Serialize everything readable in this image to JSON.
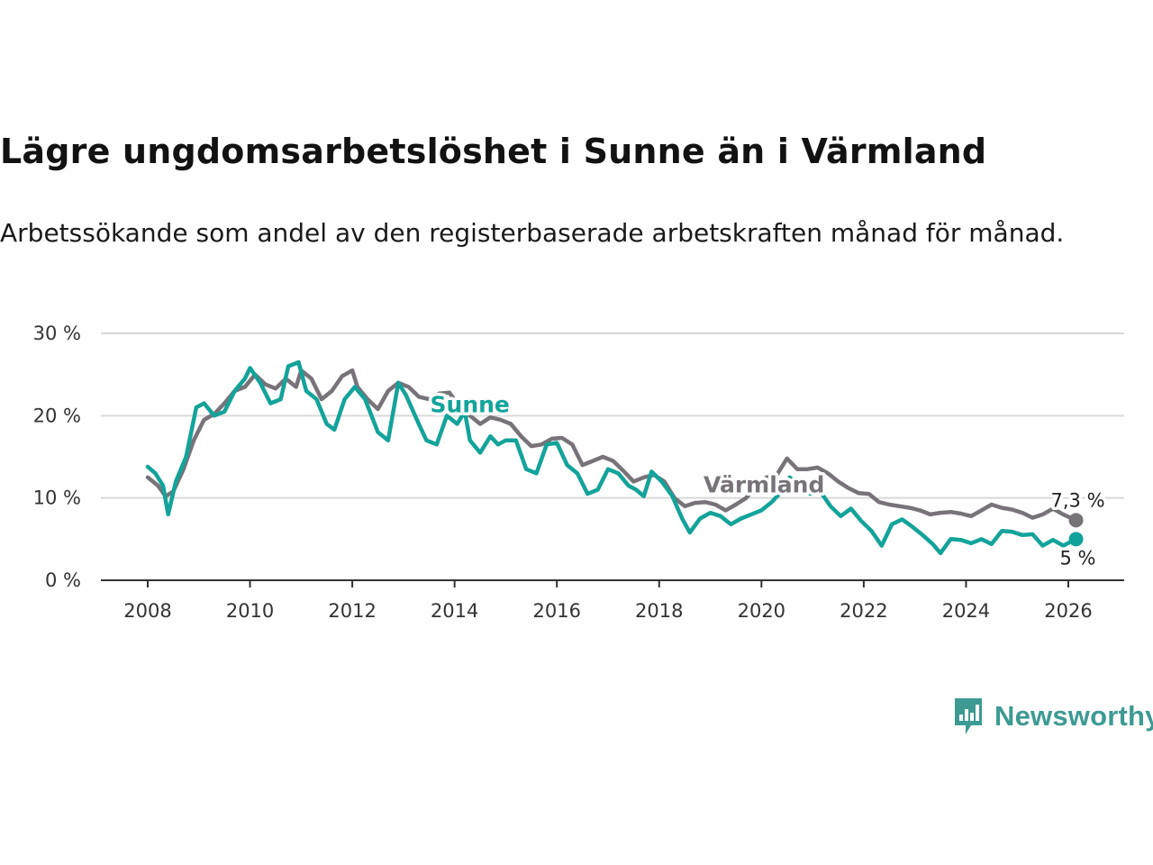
{
  "title": "Lägre ungdomsarbetslöshet i Sunne än i Värmland",
  "subtitle": "Arbetssökande som andel av den registerbaserade arbetskraften månad för månad.",
  "brand": {
    "name": "Newsworthy",
    "logo_icon": "newsworthy-logo-icon"
  },
  "colors": {
    "sunne": "#13a39a",
    "varmland": "#777379",
    "grid": "#d9d9d9",
    "axis": "#333333"
  },
  "chart_data": {
    "type": "line",
    "x_ticks": [
      "2008",
      "2010",
      "2012",
      "2014",
      "2016",
      "2018",
      "2020",
      "2022",
      "2024",
      "2026"
    ],
    "y_ticks": [
      "0 %",
      "10 %",
      "20 %",
      "30 %"
    ],
    "xlim": [
      2007.0,
      2027.0
    ],
    "ylim": [
      0,
      30
    ],
    "grid": true,
    "series": [
      {
        "name": "Värmland",
        "label": "Värmland",
        "end_label": "7,3 %",
        "points": [
          [
            2008.0,
            12.5
          ],
          [
            2008.2,
            11.5
          ],
          [
            2008.35,
            10.2
          ],
          [
            2008.5,
            10.8
          ],
          [
            2008.7,
            13.5
          ],
          [
            2008.9,
            17
          ],
          [
            2009.1,
            19.5
          ],
          [
            2009.3,
            20.2
          ],
          [
            2009.5,
            21.5
          ],
          [
            2009.7,
            23
          ],
          [
            2009.9,
            23.5
          ],
          [
            2010.1,
            25
          ],
          [
            2010.3,
            23.8
          ],
          [
            2010.5,
            23.3
          ],
          [
            2010.7,
            24.5
          ],
          [
            2010.9,
            23.5
          ],
          [
            2011.0,
            25.5
          ],
          [
            2011.2,
            24.5
          ],
          [
            2011.4,
            22
          ],
          [
            2011.6,
            23
          ],
          [
            2011.8,
            24.8
          ],
          [
            2012.0,
            25.5
          ],
          [
            2012.1,
            23.5
          ],
          [
            2012.3,
            22
          ],
          [
            2012.5,
            20.8
          ],
          [
            2012.7,
            23
          ],
          [
            2012.9,
            24
          ],
          [
            2013.1,
            23.5
          ],
          [
            2013.3,
            22.3
          ],
          [
            2013.5,
            22
          ],
          [
            2013.7,
            22.7
          ],
          [
            2013.9,
            22.8
          ],
          [
            2014.1,
            21
          ],
          [
            2014.3,
            20
          ],
          [
            2014.5,
            19
          ],
          [
            2014.7,
            19.8
          ],
          [
            2014.9,
            19.5
          ],
          [
            2015.1,
            19
          ],
          [
            2015.3,
            17.5
          ],
          [
            2015.5,
            16.3
          ],
          [
            2015.7,
            16.5
          ],
          [
            2015.9,
            17.2
          ],
          [
            2016.1,
            17.3
          ],
          [
            2016.3,
            16.5
          ],
          [
            2016.5,
            14
          ],
          [
            2016.7,
            14.5
          ],
          [
            2016.9,
            15
          ],
          [
            2017.1,
            14.5
          ],
          [
            2017.3,
            13.3
          ],
          [
            2017.5,
            12
          ],
          [
            2017.7,
            12.5
          ],
          [
            2017.9,
            12.8
          ],
          [
            2018.1,
            12
          ],
          [
            2018.3,
            10
          ],
          [
            2018.5,
            9
          ],
          [
            2018.7,
            9.4
          ],
          [
            2018.9,
            9.5
          ],
          [
            2019.1,
            9.2
          ],
          [
            2019.3,
            8.5
          ],
          [
            2019.5,
            9.2
          ],
          [
            2019.7,
            10
          ],
          [
            2019.9,
            11.5
          ],
          [
            2020.1,
            12.5
          ],
          [
            2020.3,
            12.8
          ],
          [
            2020.5,
            14.8
          ],
          [
            2020.7,
            13.5
          ],
          [
            2020.9,
            13.5
          ],
          [
            2021.1,
            13.7
          ],
          [
            2021.3,
            13
          ],
          [
            2021.5,
            12
          ],
          [
            2021.7,
            11.2
          ],
          [
            2021.9,
            10.6
          ],
          [
            2022.1,
            10.5
          ],
          [
            2022.3,
            9.5
          ],
          [
            2022.5,
            9.2
          ],
          [
            2022.7,
            9.0
          ],
          [
            2022.9,
            8.8
          ],
          [
            2023.1,
            8.5
          ],
          [
            2023.3,
            8.0
          ],
          [
            2023.5,
            8.2
          ],
          [
            2023.7,
            8.3
          ],
          [
            2023.9,
            8.1
          ],
          [
            2024.1,
            7.8
          ],
          [
            2024.3,
            8.5
          ],
          [
            2024.5,
            9.2
          ],
          [
            2024.7,
            8.8
          ],
          [
            2024.9,
            8.6
          ],
          [
            2025.1,
            8.2
          ],
          [
            2025.3,
            7.6
          ],
          [
            2025.5,
            8.0
          ],
          [
            2025.7,
            8.7
          ],
          [
            2025.9,
            8.0
          ],
          [
            2026.15,
            7.3
          ]
        ]
      },
      {
        "name": "Sunne",
        "label": "Sunne",
        "end_label": "5 %",
        "points": [
          [
            2008.0,
            13.8
          ],
          [
            2008.15,
            13
          ],
          [
            2008.3,
            11.5
          ],
          [
            2008.4,
            8.0
          ],
          [
            2008.55,
            12
          ],
          [
            2008.75,
            15
          ],
          [
            2008.95,
            21
          ],
          [
            2009.1,
            21.5
          ],
          [
            2009.3,
            20
          ],
          [
            2009.5,
            20.5
          ],
          [
            2009.7,
            23
          ],
          [
            2009.9,
            24.5
          ],
          [
            2010.0,
            25.8
          ],
          [
            2010.2,
            24
          ],
          [
            2010.4,
            21.5
          ],
          [
            2010.6,
            22
          ],
          [
            2010.75,
            26.0
          ],
          [
            2010.95,
            26.5
          ],
          [
            2011.1,
            23
          ],
          [
            2011.3,
            22
          ],
          [
            2011.5,
            19
          ],
          [
            2011.65,
            18.3
          ],
          [
            2011.85,
            22
          ],
          [
            2012.05,
            23.5
          ],
          [
            2012.25,
            22
          ],
          [
            2012.5,
            18
          ],
          [
            2012.7,
            17
          ],
          [
            2012.9,
            24
          ],
          [
            2013.05,
            22.5
          ],
          [
            2013.3,
            19
          ],
          [
            2013.45,
            17
          ],
          [
            2013.65,
            16.5
          ],
          [
            2013.85,
            20
          ],
          [
            2014.05,
            19
          ],
          [
            2014.2,
            20.5
          ],
          [
            2014.3,
            17
          ],
          [
            2014.5,
            15.5
          ],
          [
            2014.7,
            17.5
          ],
          [
            2014.85,
            16.5
          ],
          [
            2015.0,
            17
          ],
          [
            2015.2,
            17
          ],
          [
            2015.4,
            13.5
          ],
          [
            2015.6,
            13
          ],
          [
            2015.8,
            16.5
          ],
          [
            2016.0,
            16.7
          ],
          [
            2016.2,
            14
          ],
          [
            2016.4,
            13
          ],
          [
            2016.6,
            10.5
          ],
          [
            2016.8,
            11
          ],
          [
            2017.0,
            13.5
          ],
          [
            2017.2,
            13
          ],
          [
            2017.4,
            11.5
          ],
          [
            2017.55,
            11
          ],
          [
            2017.7,
            10.2
          ],
          [
            2017.85,
            13.2
          ],
          [
            2018.05,
            12
          ],
          [
            2018.25,
            10.3
          ],
          [
            2018.45,
            7.5
          ],
          [
            2018.6,
            5.8
          ],
          [
            2018.8,
            7.5
          ],
          [
            2019.0,
            8.2
          ],
          [
            2019.2,
            7.8
          ],
          [
            2019.4,
            6.8
          ],
          [
            2019.6,
            7.5
          ],
          [
            2019.8,
            8.0
          ],
          [
            2020.0,
            8.5
          ],
          [
            2020.2,
            9.5
          ],
          [
            2020.35,
            10.5
          ],
          [
            2020.55,
            12.5
          ],
          [
            2020.75,
            11.5
          ],
          [
            2020.95,
            10.5
          ],
          [
            2021.15,
            10.8
          ],
          [
            2021.35,
            9.0
          ],
          [
            2021.55,
            7.8
          ],
          [
            2021.75,
            8.7
          ],
          [
            2021.95,
            7.2
          ],
          [
            2022.15,
            6.0
          ],
          [
            2022.35,
            4.2
          ],
          [
            2022.55,
            6.8
          ],
          [
            2022.75,
            7.4
          ],
          [
            2022.95,
            6.5
          ],
          [
            2023.15,
            5.5
          ],
          [
            2023.35,
            4.4
          ],
          [
            2023.5,
            3.3
          ],
          [
            2023.7,
            5.0
          ],
          [
            2023.9,
            4.9
          ],
          [
            2024.1,
            4.5
          ],
          [
            2024.3,
            5.0
          ],
          [
            2024.5,
            4.4
          ],
          [
            2024.7,
            6.0
          ],
          [
            2024.9,
            5.9
          ],
          [
            2025.1,
            5.5
          ],
          [
            2025.3,
            5.6
          ],
          [
            2025.5,
            4.2
          ],
          [
            2025.7,
            4.9
          ],
          [
            2025.9,
            4.2
          ],
          [
            2026.15,
            5.0
          ]
        ]
      }
    ]
  }
}
